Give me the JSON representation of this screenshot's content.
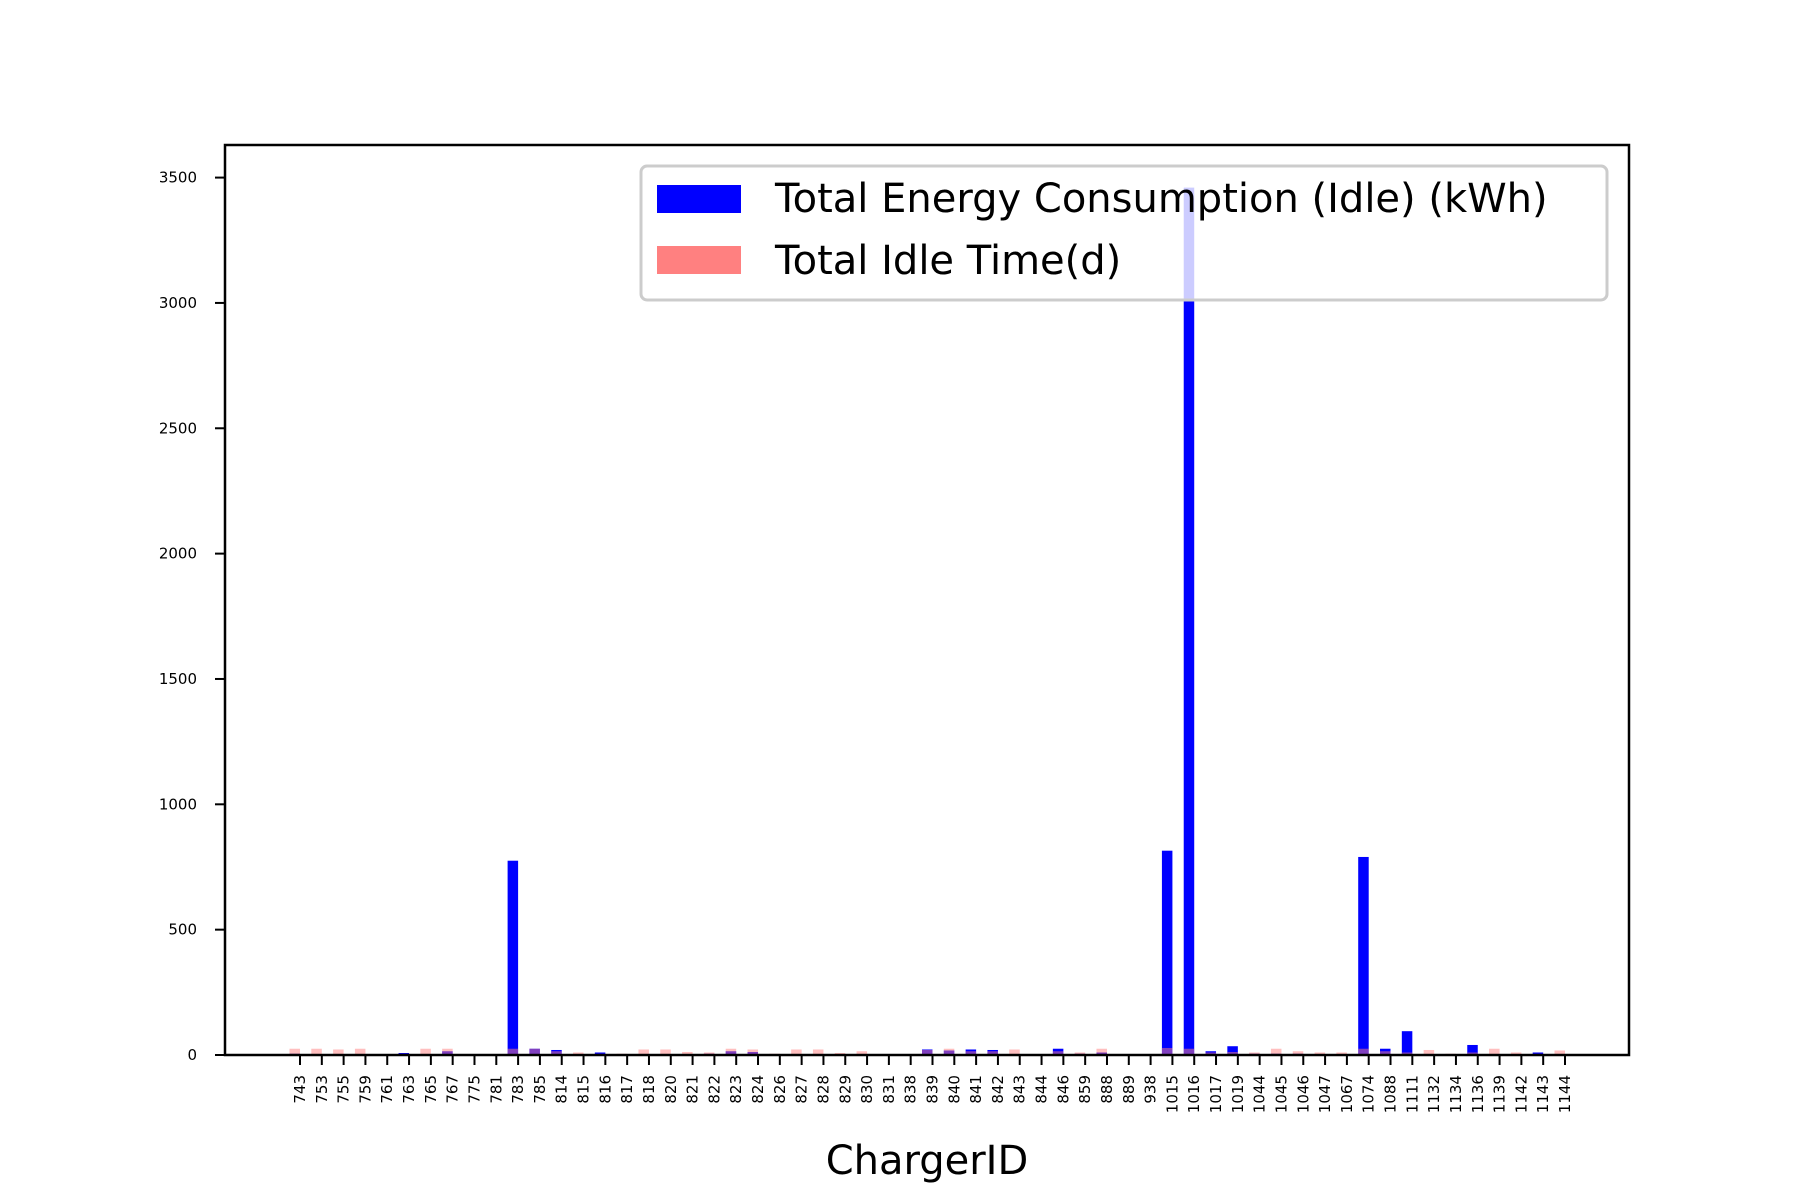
{
  "chart_data": {
    "type": "bar",
    "xlabel": "ChargerID",
    "ylabel": "",
    "ylim": [
      0,
      3630
    ],
    "yticks": [
      0,
      500,
      1000,
      1500,
      2000,
      2500,
      3000,
      3500
    ],
    "grid": false,
    "legend_position": "top-right",
    "categories": [
      "743",
      "753",
      "755",
      "759",
      "761",
      "763",
      "765",
      "767",
      "775",
      "781",
      "783",
      "785",
      "814",
      "815",
      "816",
      "817",
      "818",
      "820",
      "821",
      "822",
      "823",
      "824",
      "826",
      "827",
      "828",
      "829",
      "830",
      "831",
      "838",
      "839",
      "840",
      "841",
      "842",
      "843",
      "844",
      "846",
      "859",
      "888",
      "889",
      "938",
      "1015",
      "1016",
      "1017",
      "1019",
      "1044",
      "1045",
      "1046",
      "1047",
      "1067",
      "1074",
      "1088",
      "1111",
      "1132",
      "1134",
      "1136",
      "1139",
      "1142",
      "1143",
      "1144"
    ],
    "series": [
      {
        "name": "Total Energy Consumption (Idle) (kWh)",
        "color": "#0000ff",
        "values": [
          5,
          2,
          3,
          2,
          2,
          8,
          3,
          15,
          2,
          2,
          775,
          25,
          20,
          3,
          10,
          2,
          3,
          3,
          3,
          5,
          15,
          12,
          2,
          3,
          3,
          2,
          3,
          2,
          2,
          22,
          18,
          22,
          20,
          4,
          2,
          25,
          5,
          10,
          2,
          2,
          815,
          3460,
          15,
          35,
          5,
          5,
          5,
          3,
          4,
          790,
          25,
          95,
          3,
          2,
          40,
          3,
          2,
          10,
          3
        ]
      },
      {
        "name": "Total Idle Time(d)",
        "color": "#ff8080",
        "values": [
          25,
          25,
          22,
          25,
          3,
          5,
          25,
          25,
          3,
          3,
          25,
          25,
          15,
          10,
          5,
          5,
          22,
          22,
          12,
          10,
          25,
          22,
          5,
          22,
          22,
          8,
          15,
          3,
          3,
          20,
          25,
          15,
          15,
          22,
          3,
          15,
          10,
          25,
          3,
          3,
          28,
          25,
          10,
          12,
          10,
          25,
          15,
          10,
          10,
          25,
          15,
          10,
          20,
          5,
          10,
          25,
          10,
          5,
          18
        ]
      }
    ]
  }
}
